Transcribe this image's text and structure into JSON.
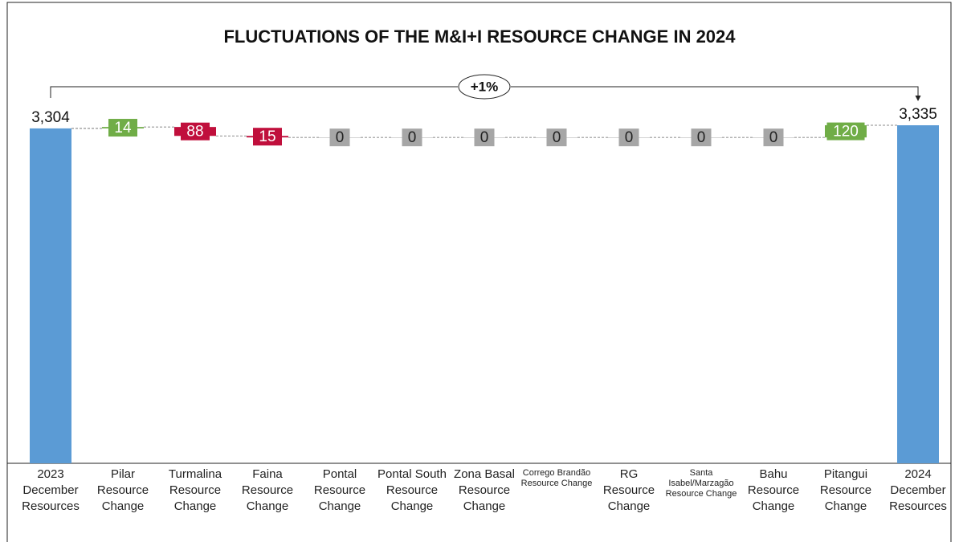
{
  "chart_data": {
    "type": "waterfall",
    "title": "FLUCTUATIONS OF THE M&I+I RESOURCE CHANGE IN 2024",
    "categories": [
      "2023 December Resources",
      "Pilar Resource Change",
      "Turmalina Resource Change",
      "Faina Resource Change",
      "Pontal Resource Change",
      "Pontal South Resource Change",
      "Zona Basal Resource Change",
      "Corrego Brandão Resource Change",
      "RG Resource Change",
      "Santa Isabel/Marzagão Resource Change",
      "Bahu Resource Change",
      "Pitangui Resource Change",
      "2024 December Resources"
    ],
    "values": [
      3304,
      14,
      -88,
      -15,
      0,
      0,
      0,
      0,
      0,
      0,
      0,
      120,
      3335
    ],
    "value_labels": [
      "3,304",
      "14",
      "88",
      "15",
      "0",
      "0",
      "0",
      "0",
      "0",
      "0",
      "0",
      "120",
      "3,335"
    ],
    "measures": [
      "absolute",
      "relative",
      "relative",
      "relative",
      "relative",
      "relative",
      "relative",
      "relative",
      "relative",
      "relative",
      "relative",
      "relative",
      "total"
    ],
    "colors": {
      "total": "#5b9bd5",
      "increase": "#70ad47",
      "decrease": "#c00f3c",
      "zero": "#a6a6a6"
    },
    "ylim": [
      0,
      3335
    ],
    "annotation": "+1%"
  }
}
